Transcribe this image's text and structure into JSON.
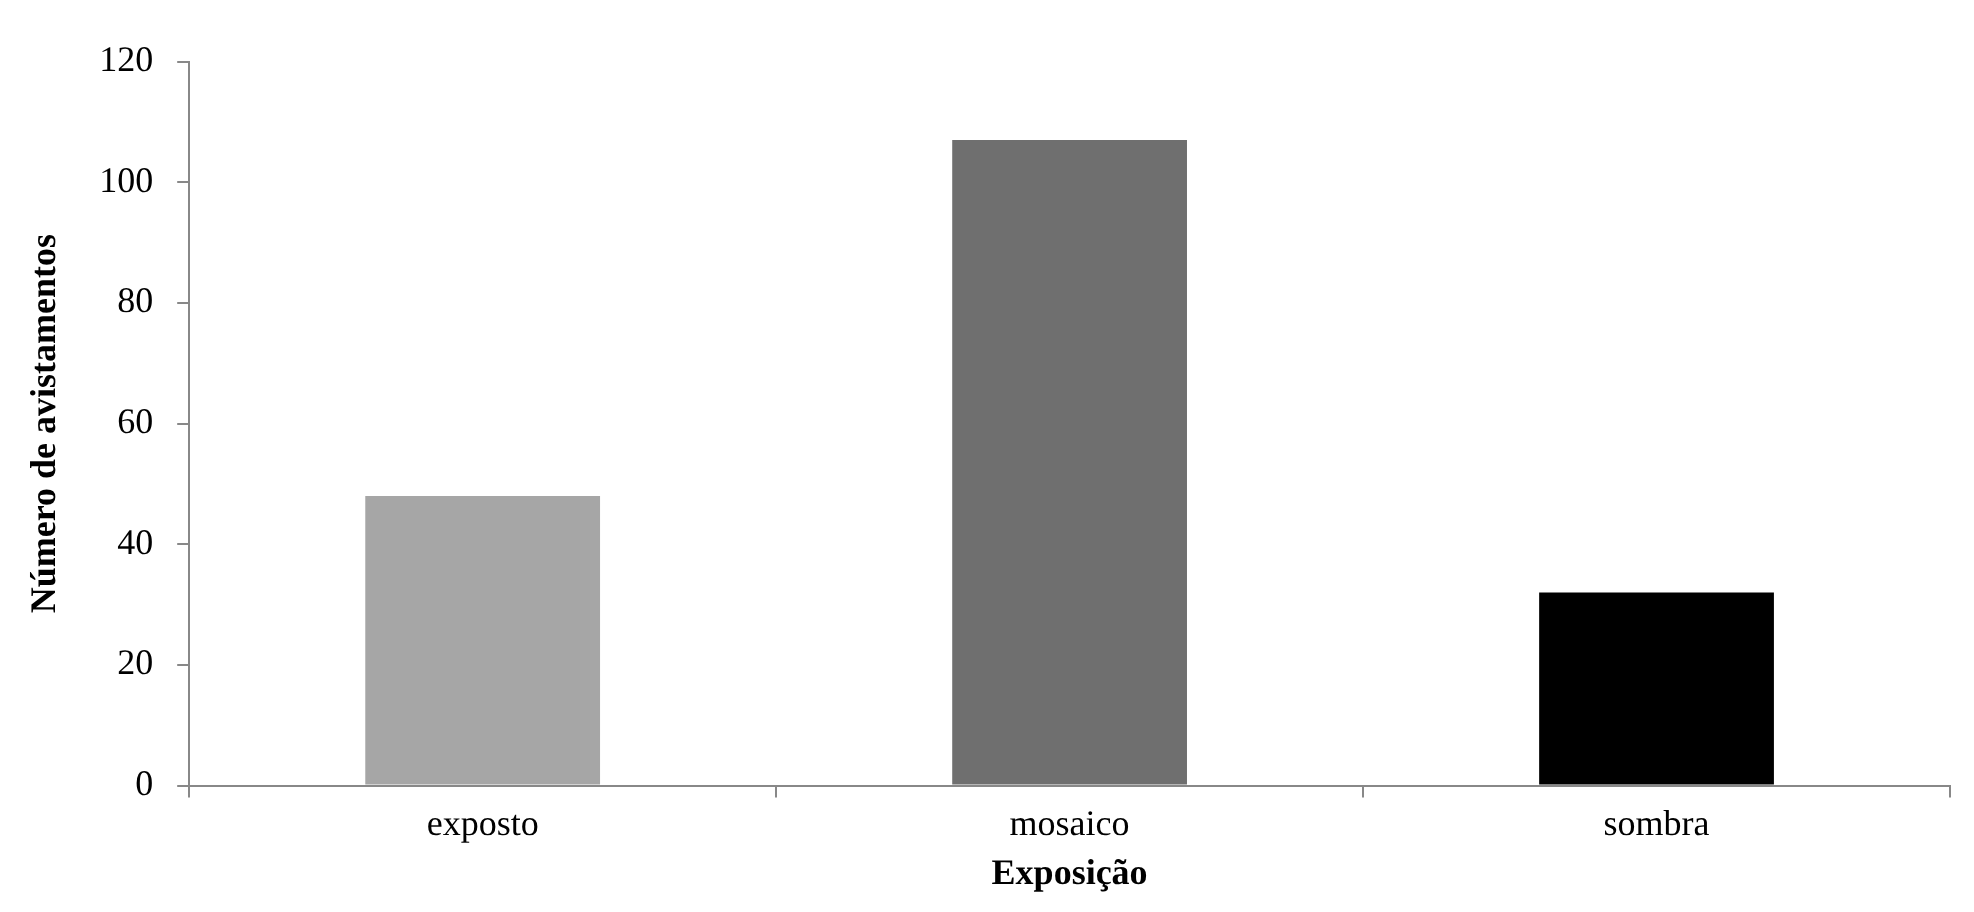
{
  "chart_data": {
    "type": "bar",
    "categories": [
      "exposto",
      "mosaico",
      "sombra"
    ],
    "values": [
      48,
      107,
      32
    ],
    "colors": [
      "#a6a6a6",
      "#6f6f6f",
      "#000000"
    ],
    "xlabel": "Exposição",
    "ylabel": "Número de avistamentos",
    "ylim": [
      0,
      120
    ],
    "yticks": [
      0,
      20,
      40,
      60,
      80,
      100,
      120
    ],
    "grid": false,
    "legend": false
  }
}
